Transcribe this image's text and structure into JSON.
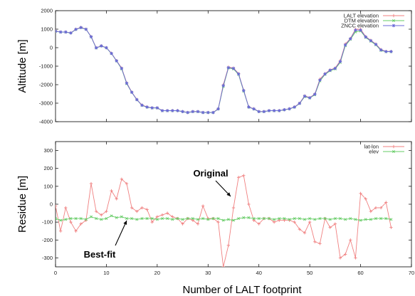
{
  "chart_data": [
    {
      "type": "line",
      "title": "",
      "xlabel": "",
      "ylabel": "Altitude [m]",
      "xlim": [
        0,
        70
      ],
      "ylim": [
        -4000,
        2000
      ],
      "yticks": [
        2000,
        1000,
        0,
        -1000,
        -2000,
        -3000,
        -4000
      ],
      "grid": false,
      "legend_position": "top-right",
      "series": [
        {
          "name": "LALT elevation",
          "color": "#f08080",
          "marker": "plus",
          "x": [
            0,
            1,
            2,
            3,
            4,
            5,
            6,
            7,
            8,
            9,
            10,
            11,
            12,
            13,
            14,
            15,
            16,
            17,
            18,
            19,
            20,
            21,
            22,
            23,
            24,
            25,
            26,
            27,
            28,
            29,
            30,
            31,
            32,
            33,
            34,
            35,
            36,
            37,
            38,
            39,
            40,
            41,
            42,
            43,
            44,
            45,
            46,
            47,
            48,
            49,
            50,
            51,
            52,
            53,
            54,
            55,
            56,
            57,
            58,
            59,
            60,
            61,
            62,
            63,
            64,
            65,
            66
          ],
          "values": [
            900,
            850,
            850,
            800,
            1000,
            1100,
            1000,
            600,
            0,
            100,
            0,
            -300,
            -700,
            -1100,
            -1900,
            -2400,
            -2800,
            -3100,
            -3200,
            -3250,
            -3250,
            -3400,
            -3400,
            -3400,
            -3400,
            -3450,
            -3500,
            -3450,
            -3450,
            -3500,
            -3500,
            -3500,
            -3300,
            -2000,
            -1050,
            -1100,
            -1400,
            -2300,
            -3200,
            -3300,
            -3450,
            -3450,
            -3400,
            -3400,
            -3400,
            -3350,
            -3300,
            -3200,
            -3000,
            -2600,
            -2700,
            -2500,
            -1700,
            -1400,
            -1200,
            -1100,
            -700,
            200,
            500,
            1000,
            1000,
            600,
            400,
            200,
            -100,
            -200,
            -200
          ]
        },
        {
          "name": "DTM elevation",
          "color": "#66cc66",
          "marker": "x",
          "x": [
            0,
            1,
            2,
            3,
            4,
            5,
            6,
            7,
            8,
            9,
            10,
            11,
            12,
            13,
            14,
            15,
            16,
            17,
            18,
            19,
            20,
            21,
            22,
            23,
            24,
            25,
            26,
            27,
            28,
            29,
            30,
            31,
            32,
            33,
            34,
            35,
            36,
            37,
            38,
            39,
            40,
            41,
            42,
            43,
            44,
            45,
            46,
            47,
            48,
            49,
            50,
            51,
            52,
            53,
            54,
            55,
            56,
            57,
            58,
            59,
            60,
            61,
            62,
            63,
            64,
            65,
            66
          ],
          "values": [
            880,
            840,
            840,
            790,
            980,
            1080,
            990,
            580,
            -20,
            90,
            -10,
            -320,
            -720,
            -1150,
            -1950,
            -2420,
            -2820,
            -3120,
            -3220,
            -3260,
            -3260,
            -3410,
            -3410,
            -3410,
            -3410,
            -3460,
            -3510,
            -3460,
            -3460,
            -3510,
            -3510,
            -3510,
            -3320,
            -2100,
            -1100,
            -1150,
            -1450,
            -2350,
            -3220,
            -3320,
            -3460,
            -3460,
            -3410,
            -3410,
            -3410,
            -3360,
            -3310,
            -3220,
            -3020,
            -2650,
            -2720,
            -2550,
            -1800,
            -1450,
            -1250,
            -1150,
            -800,
            100,
            450,
            850,
            900,
            550,
            350,
            150,
            -150,
            -220,
            -220
          ]
        },
        {
          "name": "ZNCC elevation",
          "color": "#6a6ad8",
          "marker": "star",
          "x": [
            0,
            1,
            2,
            3,
            4,
            5,
            6,
            7,
            8,
            9,
            10,
            11,
            12,
            13,
            14,
            15,
            16,
            17,
            18,
            19,
            20,
            21,
            22,
            23,
            24,
            25,
            26,
            27,
            28,
            29,
            30,
            31,
            32,
            33,
            34,
            35,
            36,
            37,
            38,
            39,
            40,
            41,
            42,
            43,
            44,
            45,
            46,
            47,
            48,
            49,
            50,
            51,
            52,
            53,
            54,
            55,
            56,
            57,
            58,
            59,
            60,
            61,
            62,
            63,
            64,
            65,
            66
          ],
          "values": [
            890,
            845,
            845,
            795,
            990,
            1090,
            995,
            590,
            -10,
            95,
            -5,
            -310,
            -710,
            -1120,
            -1920,
            -2410,
            -2810,
            -3110,
            -3210,
            -3255,
            -3255,
            -3405,
            -3405,
            -3405,
            -3405,
            -3455,
            -3505,
            -3455,
            -3455,
            -3505,
            -3505,
            -3505,
            -3310,
            -2050,
            -1080,
            -1120,
            -1420,
            -2320,
            -3210,
            -3310,
            -3455,
            -3455,
            -3405,
            -3405,
            -3405,
            -3355,
            -3305,
            -3210,
            -3010,
            -2620,
            -2710,
            -2520,
            -1750,
            -1420,
            -1220,
            -1120,
            -750,
            150,
            480,
            950,
            950,
            580,
            380,
            180,
            -120,
            -210,
            -210
          ]
        }
      ]
    },
    {
      "type": "line",
      "title": "",
      "xlabel": "Number of LALT footprint",
      "ylabel": "Residue [m]",
      "xlim": [
        0,
        70
      ],
      "ylim": [
        -350,
        350
      ],
      "xticks": [
        0,
        10,
        20,
        30,
        40,
        50,
        60,
        70
      ],
      "yticks": [
        300,
        200,
        100,
        0,
        -100,
        -200,
        -300
      ],
      "grid": false,
      "legend_position": "top-right",
      "annotations": [
        {
          "text": "Original",
          "x": 38,
          "y": 225
        },
        {
          "text": "Best-fit",
          "x": 12.5,
          "y": -225
        }
      ],
      "series": [
        {
          "name": "lat-lon",
          "color": "#f08080",
          "marker": "plus",
          "x": [
            0,
            1,
            2,
            3,
            4,
            5,
            6,
            7,
            8,
            9,
            10,
            11,
            12,
            13,
            14,
            15,
            16,
            17,
            18,
            19,
            20,
            21,
            22,
            23,
            24,
            25,
            26,
            27,
            28,
            29,
            30,
            31,
            32,
            33,
            34,
            35,
            36,
            37,
            38,
            39,
            40,
            41,
            42,
            43,
            44,
            45,
            46,
            47,
            48,
            49,
            50,
            51,
            52,
            53,
            54,
            55,
            56,
            57,
            58,
            59,
            60,
            61,
            62,
            63,
            64,
            65,
            66
          ],
          "values": [
            -10,
            -150,
            -20,
            -100,
            -150,
            -110,
            -90,
            115,
            -40,
            -60,
            -40,
            75,
            30,
            140,
            115,
            -20,
            -40,
            -20,
            -30,
            -100,
            -70,
            -60,
            -50,
            -70,
            -80,
            -110,
            -80,
            -90,
            -110,
            -10,
            -80,
            -80,
            -100,
            -350,
            -230,
            -20,
            150,
            160,
            0,
            -90,
            -110,
            -80,
            -80,
            -100,
            -90,
            -90,
            -90,
            -100,
            -140,
            -160,
            -100,
            -210,
            -220,
            -80,
            -130,
            -110,
            -300,
            -280,
            -200,
            -300,
            60,
            30,
            -40,
            -20,
            -20,
            10,
            -130
          ]
        },
        {
          "name": "elev",
          "color": "#66cc66",
          "marker": "x",
          "x": [
            0,
            1,
            2,
            3,
            4,
            5,
            6,
            7,
            8,
            9,
            10,
            11,
            12,
            13,
            14,
            15,
            16,
            17,
            18,
            19,
            20,
            21,
            22,
            23,
            24,
            25,
            26,
            27,
            28,
            29,
            30,
            31,
            32,
            33,
            34,
            35,
            36,
            37,
            38,
            39,
            40,
            41,
            42,
            43,
            44,
            45,
            46,
            47,
            48,
            49,
            50,
            51,
            52,
            53,
            54,
            55,
            56,
            57,
            58,
            59,
            60,
            61,
            62,
            63,
            64,
            65,
            66
          ],
          "values": [
            -80,
            -90,
            -85,
            -80,
            -80,
            -80,
            -85,
            -70,
            -80,
            -85,
            -80,
            -65,
            -75,
            -70,
            -80,
            -80,
            -85,
            -80,
            -80,
            -80,
            -85,
            -80,
            -80,
            -85,
            -80,
            -85,
            -80,
            -80,
            -85,
            -80,
            -85,
            -80,
            -80,
            -90,
            -85,
            -90,
            -80,
            -75,
            -75,
            -80,
            -80,
            -80,
            -80,
            -85,
            -80,
            -80,
            -85,
            -80,
            -80,
            -85,
            -80,
            -85,
            -80,
            -80,
            -85,
            -80,
            -80,
            -85,
            -80,
            -85,
            -90,
            -85,
            -85,
            -80,
            -80,
            -80,
            -85
          ]
        }
      ]
    }
  ]
}
